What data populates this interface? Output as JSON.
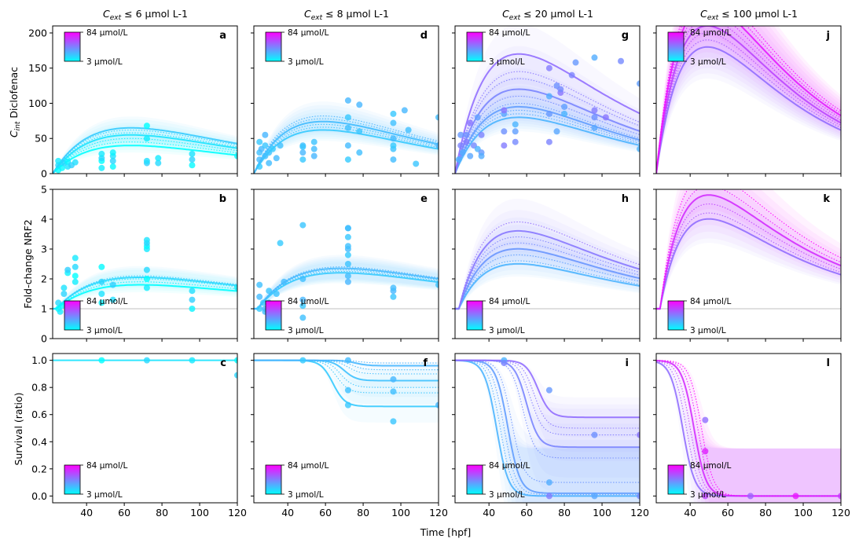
{
  "figure": {
    "xlabel": "Time [hpf]",
    "column_titles": [
      {
        "pre": "C",
        "sub": "ext",
        "post": " ≤ 6 μmol L-1"
      },
      {
        "pre": "C",
        "sub": "ext",
        "post": " ≤ 8 μmol L-1"
      },
      {
        "pre": "C",
        "sub": "ext",
        "post": " ≤ 20 μmol L-1"
      },
      {
        "pre": "C",
        "sub": "ext",
        "post": " ≤ 100 μmol L-1"
      }
    ],
    "row_ylabels": [
      {
        "pre": "C",
        "sub": "int",
        "post": " Diclofenac"
      },
      {
        "pre": "Fold-change NRF2",
        "sub": "",
        "post": ""
      },
      {
        "pre": "Survival (ratio)",
        "sub": "",
        "post": ""
      }
    ],
    "colorbar": {
      "max_label": "84 μmol/L",
      "min_label": "3 μmol/L",
      "colormap": "cool",
      "low_color": "#00ffff",
      "high_color": "#ff00ff"
    },
    "panel_letters": [
      [
        "a",
        "d",
        "g",
        "j"
      ],
      [
        "b",
        "e",
        "h",
        "k"
      ],
      [
        "c",
        "f",
        "i",
        "l"
      ]
    ],
    "reference_line_color": "#cccccc"
  },
  "chart_data": [
    {
      "type": "line",
      "panel": "a",
      "xlim": [
        22,
        120
      ],
      "ylim": [
        0,
        210
      ],
      "xticks": [
        40,
        60,
        80,
        100,
        120
      ],
      "yticks": [
        0,
        50,
        100,
        150,
        200
      ],
      "curve": "pk",
      "peaks": [
        40,
        45,
        50,
        55,
        58,
        62,
        65
      ],
      "peak_time": 65,
      "dose_range": [
        3,
        6
      ],
      "points": [
        [
          25,
          5
        ],
        [
          25,
          12
        ],
        [
          25,
          18
        ],
        [
          27,
          8
        ],
        [
          28,
          15
        ],
        [
          30,
          10
        ],
        [
          30,
          17
        ],
        [
          32,
          12
        ],
        [
          34,
          16
        ],
        [
          48,
          8
        ],
        [
          48,
          18
        ],
        [
          48,
          22
        ],
        [
          48,
          28
        ],
        [
          54,
          10
        ],
        [
          54,
          18
        ],
        [
          54,
          25
        ],
        [
          54,
          30
        ],
        [
          72,
          15
        ],
        [
          72,
          18
        ],
        [
          72,
          50
        ],
        [
          72,
          68
        ],
        [
          78,
          15
        ],
        [
          78,
          22
        ],
        [
          96,
          12
        ],
        [
          96,
          20
        ],
        [
          96,
          28
        ],
        [
          120,
          25
        ]
      ]
    },
    {
      "type": "line",
      "panel": "d",
      "xlim": [
        22,
        120
      ],
      "ylim": [
        0,
        210
      ],
      "xticks": [
        40,
        60,
        80,
        100,
        120
      ],
      "yticks": [
        0,
        50,
        100,
        150,
        200
      ],
      "curve": "pk",
      "peaks": [
        62,
        66,
        70,
        74,
        78,
        82
      ],
      "peak_time": 60,
      "dose_range": [
        6,
        8
      ],
      "points": [
        [
          25,
          10
        ],
        [
          25,
          20
        ],
        [
          25,
          30
        ],
        [
          25,
          45
        ],
        [
          26,
          35
        ],
        [
          28,
          25
        ],
        [
          28,
          40
        ],
        [
          28,
          55
        ],
        [
          30,
          15
        ],
        [
          30,
          30
        ],
        [
          32,
          35
        ],
        [
          34,
          22
        ],
        [
          36,
          40
        ],
        [
          48,
          20
        ],
        [
          48,
          30
        ],
        [
          48,
          40
        ],
        [
          48,
          38
        ],
        [
          54,
          25
        ],
        [
          54,
          35
        ],
        [
          54,
          45
        ],
        [
          72,
          20
        ],
        [
          72,
          40
        ],
        [
          72,
          65
        ],
        [
          72,
          80
        ],
        [
          72,
          104
        ],
        [
          78,
          30
        ],
        [
          78,
          60
        ],
        [
          78,
          98
        ],
        [
          96,
          20
        ],
        [
          96,
          35
        ],
        [
          96,
          40
        ],
        [
          96,
          50
        ],
        [
          96,
          72
        ],
        [
          96,
          85
        ],
        [
          102,
          90
        ],
        [
          104,
          62
        ],
        [
          108,
          14
        ],
        [
          120,
          40
        ],
        [
          120,
          80
        ]
      ]
    },
    {
      "type": "line",
      "panel": "g",
      "xlim": [
        22,
        120
      ],
      "ylim": [
        0,
        210
      ],
      "xticks": [
        40,
        60,
        80,
        100,
        120
      ],
      "yticks": [
        0,
        50,
        100,
        150,
        200
      ],
      "curve": "pk",
      "peaks": [
        80,
        85,
        90,
        95,
        100,
        110,
        120,
        135,
        145,
        170
      ],
      "peak_time": 57,
      "dose_range": [
        8,
        20
      ],
      "points": [
        [
          24,
          20
        ],
        [
          25,
          40
        ],
        [
          25,
          55
        ],
        [
          26,
          30
        ],
        [
          28,
          45
        ],
        [
          28,
          55
        ],
        [
          30,
          25
        ],
        [
          30,
          72
        ],
        [
          32,
          40
        ],
        [
          34,
          80
        ],
        [
          34,
          35
        ],
        [
          36,
          55
        ],
        [
          36,
          30
        ],
        [
          36,
          25
        ],
        [
          48,
          40
        ],
        [
          48,
          60
        ],
        [
          48,
          85
        ],
        [
          48,
          90
        ],
        [
          54,
          45
        ],
        [
          54,
          60
        ],
        [
          54,
          70
        ],
        [
          72,
          45
        ],
        [
          72,
          85
        ],
        [
          72,
          110
        ],
        [
          72,
          150
        ],
        [
          76,
          125
        ],
        [
          76,
          60
        ],
        [
          78,
          115
        ],
        [
          78,
          120
        ],
        [
          80,
          95
        ],
        [
          80,
          85
        ],
        [
          84,
          140
        ],
        [
          86,
          158
        ],
        [
          96,
          165
        ],
        [
          96,
          90
        ],
        [
          96,
          80
        ],
        [
          96,
          65
        ],
        [
          102,
          80
        ],
        [
          110,
          160
        ],
        [
          120,
          128
        ],
        [
          120,
          35
        ]
      ]
    },
    {
      "type": "line",
      "panel": "j",
      "xlim": [
        22,
        120
      ],
      "ylim": [
        0,
        210
      ],
      "xticks": [
        40,
        60,
        80,
        100,
        120
      ],
      "yticks": [
        0,
        50,
        100,
        150,
        200
      ],
      "curve": "pk",
      "peaks": [
        180,
        190,
        200,
        210,
        220,
        230,
        240,
        250,
        260
      ],
      "peak_time": 50,
      "dose_range": [
        20,
        84
      ],
      "points": []
    },
    {
      "type": "line",
      "panel": "b",
      "xlim": [
        22,
        120
      ],
      "ylim": [
        0,
        5
      ],
      "xticks": [
        40,
        60,
        80,
        100,
        120
      ],
      "yticks": [
        0,
        1,
        2,
        3,
        4,
        5
      ],
      "curve": "nrf",
      "amps": [
        1.8,
        1.9,
        2.0,
        2.05,
        2.1
      ],
      "peak_time": 72,
      "dose_range": [
        3,
        6
      ],
      "points": [
        [
          25,
          1.0
        ],
        [
          25,
          1.2
        ],
        [
          26,
          0.9
        ],
        [
          27,
          1.1
        ],
        [
          28,
          1.5
        ],
        [
          28,
          1.7
        ],
        [
          30,
          2.2
        ],
        [
          30,
          2.3
        ],
        [
          30,
          1.2
        ],
        [
          34,
          1.9
        ],
        [
          34,
          2.1
        ],
        [
          34,
          2.4
        ],
        [
          34,
          2.7
        ],
        [
          48,
          2.4
        ],
        [
          48,
          1.9
        ],
        [
          48,
          1.5
        ],
        [
          48,
          1.2
        ],
        [
          54,
          1.8
        ],
        [
          54,
          1.3
        ],
        [
          72,
          1.7
        ],
        [
          72,
          2.0
        ],
        [
          72,
          2.3
        ],
        [
          72,
          3.0
        ],
        [
          72,
          3.1
        ],
        [
          72,
          3.2
        ],
        [
          72,
          3.3
        ],
        [
          96,
          1.0
        ],
        [
          96,
          1.3
        ],
        [
          96,
          1.6
        ],
        [
          120,
          1.7
        ]
      ]
    },
    {
      "type": "line",
      "panel": "e",
      "xlim": [
        22,
        120
      ],
      "ylim": [
        0,
        5
      ],
      "xticks": [
        40,
        60,
        80,
        100,
        120
      ],
      "yticks": [
        0,
        1,
        2,
        3,
        4,
        5
      ],
      "curve": "nrf",
      "amps": [
        2.2,
        2.25,
        2.3,
        2.35,
        2.4
      ],
      "peak_time": 72,
      "dose_range": [
        6,
        8
      ],
      "points": [
        [
          25,
          1.0
        ],
        [
          25,
          1.4
        ],
        [
          25,
          1.8
        ],
        [
          27,
          1.2
        ],
        [
          28,
          1.0
        ],
        [
          28,
          0.9
        ],
        [
          30,
          1.6
        ],
        [
          30,
          1.2
        ],
        [
          34,
          1.1
        ],
        [
          34,
          1.5
        ],
        [
          36,
          3.2
        ],
        [
          38,
          1.9
        ],
        [
          48,
          0.7
        ],
        [
          48,
          1.1
        ],
        [
          48,
          1.3
        ],
        [
          48,
          2.0
        ],
        [
          48,
          3.8
        ],
        [
          72,
          1.9
        ],
        [
          72,
          2.1
        ],
        [
          72,
          2.5
        ],
        [
          72,
          2.8
        ],
        [
          72,
          3.0
        ],
        [
          72,
          3.1
        ],
        [
          72,
          3.4
        ],
        [
          72,
          3.7
        ],
        [
          72,
          3.7
        ],
        [
          96,
          1.4
        ],
        [
          96,
          1.6
        ],
        [
          96,
          1.7
        ],
        [
          120,
          1.8
        ]
      ]
    },
    {
      "type": "line",
      "panel": "h",
      "xlim": [
        22,
        120
      ],
      "ylim": [
        0,
        5
      ],
      "xticks": [
        40,
        60,
        80,
        100,
        120
      ],
      "yticks": [
        0,
        1,
        2,
        3,
        4,
        5
      ],
      "curve": "nrf",
      "amps": [
        2.5,
        2.6,
        2.8,
        3.0,
        3.2,
        3.4,
        3.6,
        3.9
      ],
      "peak_time": 58,
      "dose_range": [
        8,
        20
      ],
      "points": []
    },
    {
      "type": "line",
      "panel": "k",
      "xlim": [
        22,
        120
      ],
      "ylim": [
        0,
        5
      ],
      "xticks": [
        40,
        60,
        80,
        100,
        120
      ],
      "yticks": [
        0,
        1,
        2,
        3,
        4,
        5
      ],
      "curve": "nrf",
      "amps": [
        4.0,
        4.2,
        4.5,
        4.8,
        5.1,
        5.5
      ],
      "peak_time": 52,
      "dose_range": [
        20,
        84
      ],
      "points": []
    },
    {
      "type": "line",
      "panel": "c",
      "xlim": [
        22,
        120
      ],
      "ylim": [
        -0.05,
        1.05
      ],
      "xticks": [
        40,
        60,
        80,
        100,
        120
      ],
      "yticks": [
        0.0,
        0.2,
        0.4,
        0.6,
        0.8,
        1.0
      ],
      "curve": "surv",
      "finals": [
        1.0
      ],
      "mids": [
        60
      ],
      "dose_range": [
        3,
        6
      ],
      "points": [
        [
          48,
          1.0
        ],
        [
          72,
          1.0
        ],
        [
          96,
          1.0
        ],
        [
          120,
          1.0
        ],
        [
          120,
          0.89
        ]
      ]
    },
    {
      "type": "line",
      "panel": "f",
      "xlim": [
        22,
        120
      ],
      "ylim": [
        -0.05,
        1.05
      ],
      "xticks": [
        40,
        60,
        80,
        100,
        120
      ],
      "yticks": [
        0.0,
        0.2,
        0.4,
        0.6,
        0.8,
        1.0
      ],
      "curve": "surv",
      "finals": [
        0.66,
        0.76,
        0.8,
        0.85,
        0.9,
        0.93,
        0.96,
        0.98
      ],
      "mids": [
        64,
        66,
        68,
        70,
        72,
        74,
        76,
        78
      ],
      "dose_range": [
        6,
        8
      ],
      "points": [
        [
          48,
          1.0
        ],
        [
          72,
          1.0
        ],
        [
          72,
          0.78
        ],
        [
          72,
          0.67
        ],
        [
          96,
          0.86
        ],
        [
          96,
          0.77
        ],
        [
          96,
          0.55
        ],
        [
          120,
          0.67
        ]
      ]
    },
    {
      "type": "line",
      "panel": "i",
      "xlim": [
        22,
        120
      ],
      "ylim": [
        -0.05,
        1.05
      ],
      "xticks": [
        40,
        60,
        80,
        100,
        120
      ],
      "yticks": [
        0.0,
        0.2,
        0.4,
        0.6,
        0.8,
        1.0
      ],
      "curve": "surv",
      "finals": [
        0.0,
        0.0,
        0.01,
        0.02,
        0.1,
        0.28,
        0.36,
        0.45,
        0.5,
        0.58
      ],
      "mids": [
        44,
        46,
        48,
        50,
        52,
        58,
        60,
        62,
        64,
        66
      ],
      "dose_range": [
        8,
        20
      ],
      "points": [
        [
          48,
          1.0
        ],
        [
          48,
          0.98
        ],
        [
          72,
          0.78
        ],
        [
          72,
          0.1
        ],
        [
          72,
          0.0
        ],
        [
          96,
          0.45
        ],
        [
          96,
          0.0
        ],
        [
          120,
          0.45
        ],
        [
          120,
          0.0
        ]
      ]
    },
    {
      "type": "line",
      "panel": "l",
      "xlim": [
        22,
        120
      ],
      "ylim": [
        -0.05,
        1.05
      ],
      "xticks": [
        40,
        60,
        80,
        100,
        120
      ],
      "yticks": [
        0.0,
        0.2,
        0.4,
        0.6,
        0.8,
        1.0
      ],
      "curve": "surv",
      "finals": [
        0,
        0,
        0,
        0,
        0,
        0
      ],
      "mids": [
        36,
        38,
        40,
        42,
        44,
        46
      ],
      "dose_range": [
        20,
        84
      ],
      "points": [
        [
          48,
          0.56
        ],
        [
          48,
          0.33
        ],
        [
          48,
          0.0
        ],
        [
          72,
          0.0
        ],
        [
          96,
          0.0
        ],
        [
          120,
          0.0
        ]
      ]
    }
  ]
}
